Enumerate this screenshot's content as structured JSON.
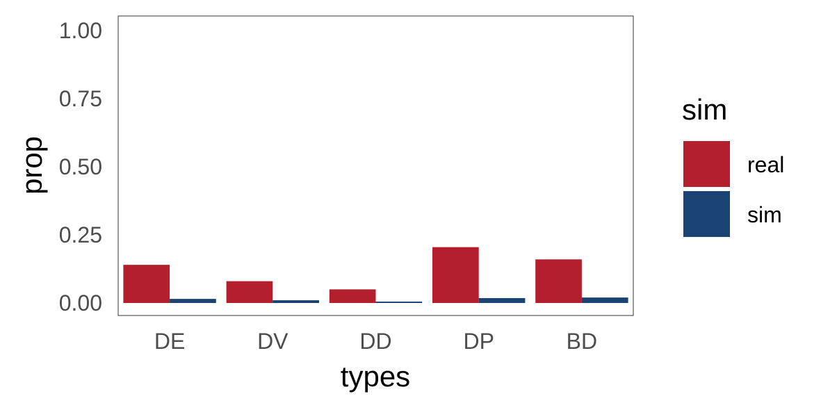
{
  "chart_data": {
    "type": "bar",
    "categories": [
      "DE",
      "DV",
      "DD",
      "DP",
      "BD"
    ],
    "series": [
      {
        "name": "real",
        "color": "#b31f2c",
        "values": [
          0.14,
          0.08,
          0.05,
          0.205,
          0.16
        ]
      },
      {
        "name": "sim",
        "color": "#1a4272",
        "values": [
          0.015,
          0.01,
          0.005,
          0.018,
          0.02
        ]
      }
    ],
    "xlabel": "types",
    "ylabel": "prop",
    "ylim": [
      0,
      1
    ],
    "yticks": [
      "0.00",
      "0.25",
      "0.50",
      "0.75",
      "1.00"
    ],
    "legend": {
      "title": "sim",
      "position": "right"
    },
    "grid": false
  }
}
